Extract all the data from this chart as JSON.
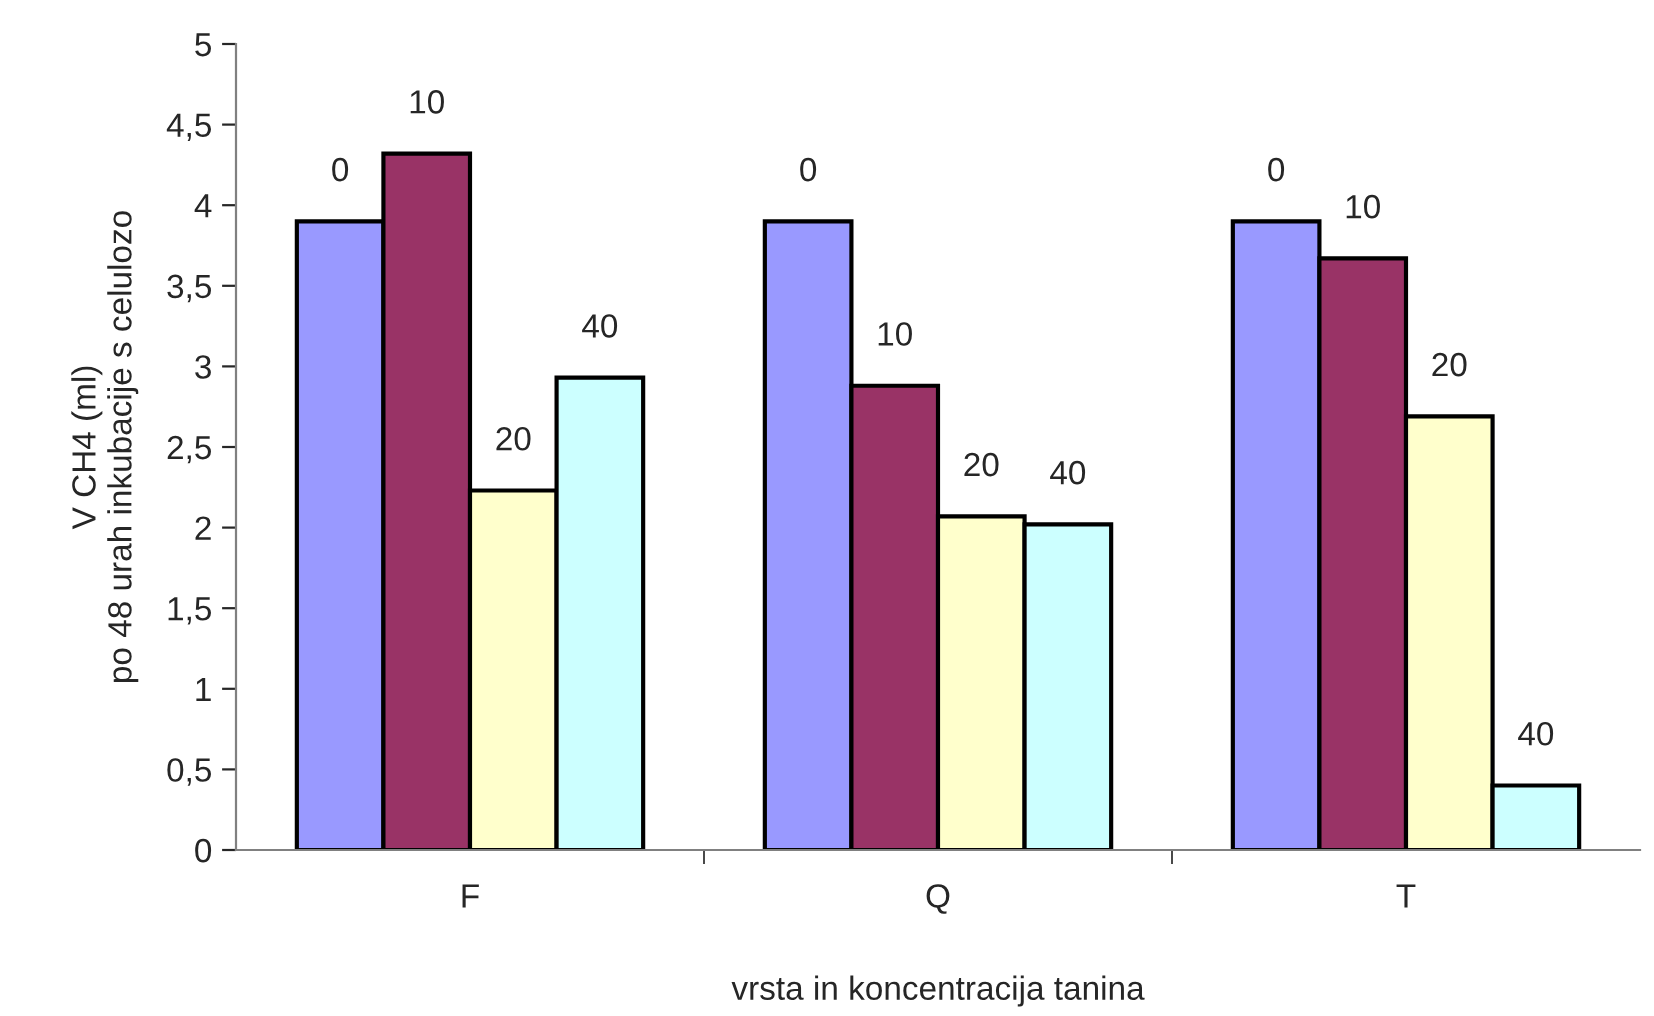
{
  "chart_data": {
    "type": "bar",
    "xlabel": "vrsta in koncentracija tanina",
    "ylabel": "V CH4 (ml)\npo 48 urah inkubacije s celulozo",
    "categories": [
      "F",
      "Q",
      "T"
    ],
    "series": [
      {
        "name": "0",
        "color": "#9999ff",
        "values": [
          3.9,
          3.9,
          3.9
        ]
      },
      {
        "name": "10",
        "color": "#993366",
        "values": [
          4.32,
          2.88,
          3.67
        ]
      },
      {
        "name": "20",
        "color": "#ffffcc",
        "values": [
          2.23,
          2.07,
          2.69
        ]
      },
      {
        "name": "40",
        "color": "#ccffff",
        "values": [
          2.93,
          2.02,
          0.4
        ]
      }
    ],
    "ylim": [
      0,
      5
    ],
    "yticks": [
      0,
      {
        "value": 0.5,
        "label": "0,5"
      },
      1,
      {
        "value": 1.5,
        "label": "1,5"
      },
      2,
      {
        "value": 2.5,
        "label": "2,5"
      },
      3,
      {
        "value": 3.5,
        "label": "3,5"
      },
      4,
      {
        "value": 4.5,
        "label": "4,5"
      },
      5
    ],
    "grid": false,
    "legend": false
  }
}
